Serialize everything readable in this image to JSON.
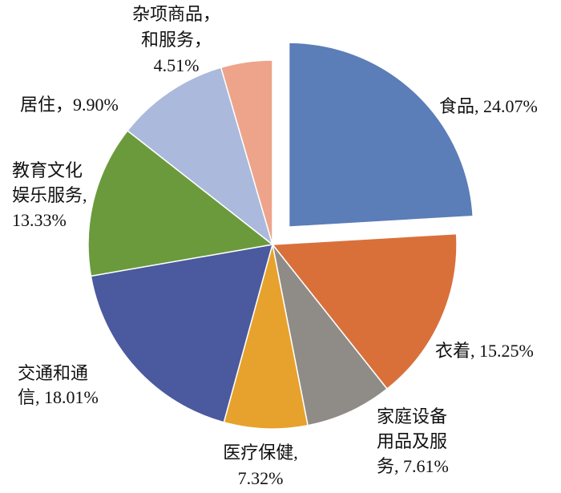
{
  "chart_data": {
    "type": "pie",
    "values": [
      24.07,
      15.25,
      7.61,
      7.32,
      18.01,
      13.33,
      9.9,
      4.51
    ],
    "value_labels": [
      [
        "食品, 24.07%"
      ],
      [
        "衣着, 15.25%"
      ],
      [
        "家庭设备",
        "用品及服",
        "务, 7.61%"
      ],
      [
        "医疗保健,",
        "7.32%"
      ],
      [
        "交通和通",
        "信, 18.01%"
      ],
      [
        "教育文化",
        "娱乐服务,",
        "13.33%"
      ],
      [
        "居住，9.90%"
      ],
      [
        "杂项商品，",
        "和服务，",
        "4.51%"
      ]
    ],
    "colors": [
      "#5b7db8",
      "#d9703a",
      "#8f8c88",
      "#e6a22c",
      "#4b5a9e",
      "#6b9a3c",
      "#aab9dc",
      "#eda48b"
    ],
    "explode": [
      1,
      0,
      0,
      0,
      0,
      0,
      0,
      0
    ]
  }
}
